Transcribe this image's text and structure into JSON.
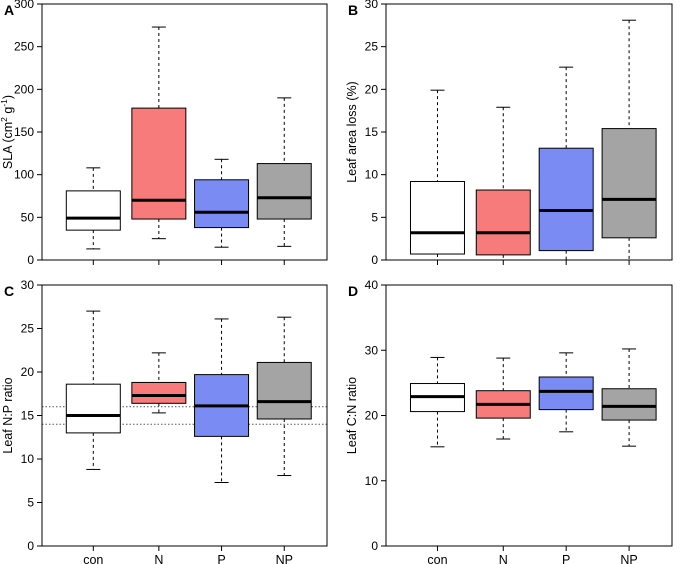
{
  "colors": {
    "con": "#ffffff",
    "N": "#f77b7b",
    "P": "#7a8cf3",
    "NP": "#a4a4a4",
    "median": "#000000",
    "frame": "#000000",
    "refline": "#555555"
  },
  "categories": [
    "con",
    "N",
    "P",
    "NP"
  ],
  "chart_data": [
    {
      "type": "boxplot",
      "panel": "A",
      "ylabel_parts": [
        "SLA (cm",
        "2",
        " g",
        "-1",
        ")"
      ],
      "ylim": [
        0,
        300
      ],
      "yticks": [
        0,
        50,
        100,
        150,
        200,
        250,
        300
      ],
      "categories": [
        "con",
        "N",
        "P",
        "NP"
      ],
      "boxes": [
        {
          "category": "con",
          "min": 13,
          "q1": 35,
          "median": 49,
          "q3": 81,
          "max": 108
        },
        {
          "category": "N",
          "min": 25,
          "q1": 48,
          "median": 70,
          "q3": 178,
          "max": 273
        },
        {
          "category": "P",
          "min": 15,
          "q1": 38,
          "median": 56,
          "q3": 94,
          "max": 118
        },
        {
          "category": "NP",
          "min": 16,
          "q1": 48,
          "median": 73,
          "q3": 113,
          "max": 190
        }
      ],
      "show_category_labels": false
    },
    {
      "type": "boxplot",
      "panel": "B",
      "ylabel_parts": [
        "Leaf area loss (%)"
      ],
      "ylim": [
        0,
        30
      ],
      "yticks": [
        0,
        5,
        10,
        15,
        20,
        25,
        30
      ],
      "categories": [
        "con",
        "N",
        "P",
        "NP"
      ],
      "boxes": [
        {
          "category": "con",
          "min": 0,
          "q1": 0.7,
          "median": 3.2,
          "q3": 9.2,
          "max": 19.9
        },
        {
          "category": "N",
          "min": 0,
          "q1": 0.6,
          "median": 3.2,
          "q3": 8.2,
          "max": 17.9
        },
        {
          "category": "P",
          "min": 0,
          "q1": 1.1,
          "median": 5.8,
          "q3": 13.1,
          "max": 22.6
        },
        {
          "category": "NP",
          "min": 0,
          "q1": 2.6,
          "median": 7.1,
          "q3": 15.4,
          "max": 28.1
        }
      ],
      "show_category_labels": false
    },
    {
      "type": "boxplot",
      "panel": "C",
      "ylabel_parts": [
        "Leaf N:P ratio"
      ],
      "ylim": [
        0,
        30
      ],
      "yticks": [
        0,
        5,
        10,
        15,
        20,
        25,
        30
      ],
      "categories": [
        "con",
        "N",
        "P",
        "NP"
      ],
      "boxes": [
        {
          "category": "con",
          "min": 8.8,
          "q1": 13.0,
          "median": 15.0,
          "q3": 18.6,
          "max": 27.0
        },
        {
          "category": "N",
          "min": 15.3,
          "q1": 16.4,
          "median": 17.3,
          "q3": 18.8,
          "max": 22.2
        },
        {
          "category": "P",
          "min": 7.3,
          "q1": 12.6,
          "median": 16.1,
          "q3": 19.7,
          "max": 26.1
        },
        {
          "category": "NP",
          "min": 8.1,
          "q1": 14.6,
          "median": 16.6,
          "q3": 21.1,
          "max": 26.3
        }
      ],
      "reference_lines": [
        14,
        16
      ],
      "show_category_labels": true
    },
    {
      "type": "boxplot",
      "panel": "D",
      "ylabel_parts": [
        "Leaf C:N ratio"
      ],
      "ylim": [
        0,
        40
      ],
      "yticks": [
        0,
        10,
        20,
        30,
        40
      ],
      "categories": [
        "con",
        "N",
        "P",
        "NP"
      ],
      "boxes": [
        {
          "category": "con",
          "min": 15.2,
          "q1": 20.6,
          "median": 22.9,
          "q3": 24.9,
          "max": 28.9
        },
        {
          "category": "N",
          "min": 16.4,
          "q1": 19.6,
          "median": 21.7,
          "q3": 23.8,
          "max": 28.8
        },
        {
          "category": "P",
          "min": 17.5,
          "q1": 20.9,
          "median": 23.7,
          "q3": 25.9,
          "max": 29.6
        },
        {
          "category": "NP",
          "min": 15.3,
          "q1": 19.3,
          "median": 21.4,
          "q3": 24.1,
          "max": 30.2
        }
      ],
      "show_category_labels": true
    }
  ]
}
